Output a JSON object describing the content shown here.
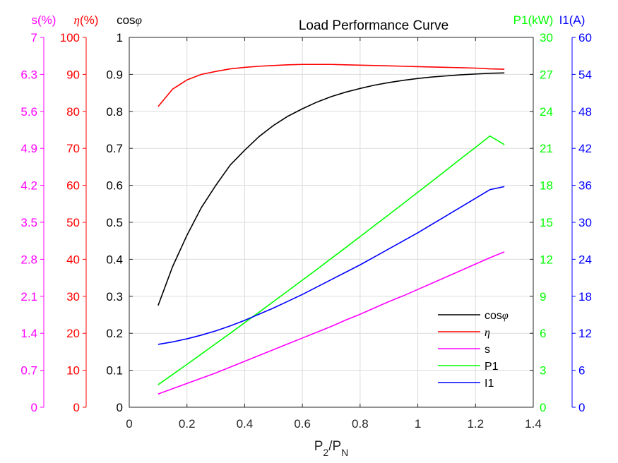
{
  "chart_data": {
    "type": "line",
    "title": "Load Performance Curve",
    "xlabel": {
      "main": "P",
      "sub1": "2",
      "slash": "/P",
      "sub2": "N"
    },
    "xlim": [
      0,
      1.4
    ],
    "x_ticks": [
      "0",
      "0.2",
      "0.4",
      "0.6",
      "0.8",
      "1",
      "1.2",
      "1.4"
    ],
    "x": [
      0.1,
      0.15,
      0.2,
      0.25,
      0.3,
      0.35,
      0.4,
      0.45,
      0.5,
      0.55,
      0.6,
      0.65,
      0.7,
      0.75,
      0.8,
      0.85,
      0.9,
      0.95,
      1.0,
      1.05,
      1.1,
      1.15,
      1.2,
      1.25,
      1.3
    ],
    "grid": true,
    "legend_position": "lower-right",
    "axes": [
      {
        "id": "s",
        "label": "s(%)",
        "color": "#ff00ff",
        "ylim": [
          0,
          7
        ],
        "ticks": [
          "0",
          "0.7",
          "1.4",
          "2.1",
          "2.8",
          "3.5",
          "4.2",
          "4.9",
          "5.6",
          "6.3",
          "7"
        ]
      },
      {
        "id": "eta",
        "label_symbol": "η",
        "label_suffix": "(%)",
        "color": "#ff0000",
        "ylim": [
          0,
          100
        ],
        "ticks": [
          "0",
          "10",
          "20",
          "30",
          "40",
          "50",
          "60",
          "70",
          "80",
          "90",
          "100"
        ]
      },
      {
        "id": "cos",
        "label_prefix": "cos",
        "label_symbol": "φ",
        "color": "#000000",
        "ylim": [
          0,
          1
        ],
        "ticks": [
          "0",
          "0.1",
          "0.2",
          "0.3",
          "0.4",
          "0.5",
          "0.6",
          "0.7",
          "0.8",
          "0.9",
          "1"
        ]
      },
      {
        "id": "p1",
        "label": "P1(kW)",
        "color": "#00ff00",
        "ylim": [
          0,
          30
        ],
        "ticks": [
          "0",
          "3",
          "6",
          "9",
          "12",
          "15",
          "18",
          "21",
          "24",
          "27",
          "30"
        ]
      },
      {
        "id": "i1",
        "label": "I1(A)",
        "color": "#0000ff",
        "ylim": [
          0,
          60
        ],
        "ticks": [
          "0",
          "6",
          "12",
          "18",
          "24",
          "30",
          "36",
          "42",
          "48",
          "54",
          "60"
        ]
      }
    ],
    "series": [
      {
        "name": "cosφ",
        "legend_prefix": "cos",
        "legend_symbol": "φ",
        "axis": "cos",
        "color": "#000000",
        "values": [
          0.275,
          0.38,
          0.465,
          0.54,
          0.6,
          0.655,
          0.695,
          0.732,
          0.762,
          0.787,
          0.807,
          0.825,
          0.84,
          0.852,
          0.862,
          0.871,
          0.878,
          0.884,
          0.889,
          0.893,
          0.896,
          0.899,
          0.901,
          0.903,
          0.904
        ]
      },
      {
        "name": "η",
        "axis": "eta",
        "color": "#ff0000",
        "values": [
          81.3,
          86.0,
          88.5,
          90.0,
          90.8,
          91.5,
          91.9,
          92.2,
          92.4,
          92.6,
          92.7,
          92.7,
          92.7,
          92.6,
          92.5,
          92.4,
          92.3,
          92.2,
          92.1,
          92.0,
          91.9,
          91.8,
          91.7,
          91.5,
          91.4
        ]
      },
      {
        "name": "s",
        "axis": "s",
        "color": "#ff00ff",
        "values": [
          0.25,
          0.35,
          0.45,
          0.55,
          0.65,
          0.76,
          0.87,
          0.98,
          1.09,
          1.2,
          1.31,
          1.42,
          1.53,
          1.65,
          1.76,
          1.88,
          2.0,
          2.11,
          2.23,
          2.35,
          2.47,
          2.59,
          2.71,
          2.83,
          2.94
        ]
      },
      {
        "name": "P1",
        "axis": "p1",
        "color": "#00ff00",
        "values": [
          1.83,
          2.65,
          3.48,
          4.32,
          5.16,
          6.0,
          6.86,
          7.71,
          8.58,
          9.44,
          10.31,
          11.18,
          12.07,
          12.95,
          13.84,
          14.74,
          15.63,
          16.53,
          17.44,
          18.34,
          19.26,
          20.18,
          21.08,
          22.0,
          21.3
        ]
      },
      {
        "name": "I1",
        "axis": "i1",
        "color": "#0000ff",
        "values": [
          10.2,
          10.6,
          11.1,
          11.7,
          12.4,
          13.2,
          14.1,
          15.1,
          16.1,
          17.2,
          18.3,
          19.5,
          20.7,
          21.9,
          23.1,
          24.4,
          25.7,
          27.0,
          28.3,
          29.7,
          31.1,
          32.5,
          33.9,
          35.3,
          35.8
        ]
      }
    ]
  }
}
